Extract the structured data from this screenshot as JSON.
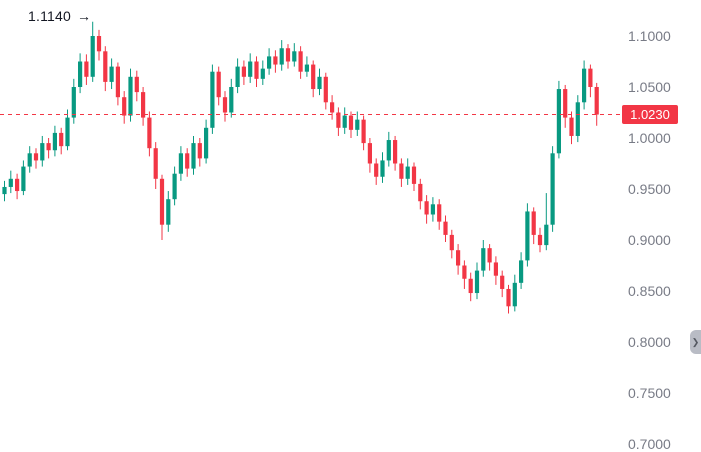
{
  "icons": {
    "arrow_right": "→",
    "chevron_right": "❯"
  },
  "chart_data": {
    "type": "candlestick",
    "title": "",
    "xlabel": "",
    "ylabel": "",
    "grid": false,
    "legend": false,
    "y_axis": {
      "side": "right",
      "ticks": [
        "1.1000",
        "1.0500",
        "1.0000",
        "0.9500",
        "0.9000",
        "0.8500",
        "0.8000",
        "0.7500",
        "0.7000"
      ],
      "range": [
        0.7,
        1.1
      ]
    },
    "colors": {
      "up": "#089981",
      "down": "#f23645"
    },
    "price_line": {
      "value": 1.023,
      "label": "1.0230",
      "color": "#f23645",
      "style": "dashed"
    },
    "annotation": {
      "text": "1.1140",
      "value": 1.114
    },
    "candles": [
      [
        0.945,
        0.958,
        0.938,
        0.952
      ],
      [
        0.952,
        0.968,
        0.946,
        0.96
      ],
      [
        0.96,
        0.965,
        0.94,
        0.948
      ],
      [
        0.948,
        0.978,
        0.944,
        0.972
      ],
      [
        0.972,
        0.992,
        0.966,
        0.985
      ],
      [
        0.985,
        0.99,
        0.97,
        0.978
      ],
      [
        0.978,
        1.002,
        0.972,
        0.995
      ],
      [
        0.995,
        1.0,
        0.98,
        0.988
      ],
      [
        0.988,
        1.012,
        0.982,
        1.005
      ],
      [
        1.005,
        1.01,
        0.984,
        0.992
      ],
      [
        0.992,
        1.028,
        0.988,
        1.02
      ],
      [
        1.02,
        1.058,
        1.014,
        1.05
      ],
      [
        1.05,
        1.083,
        1.044,
        1.075
      ],
      [
        1.075,
        1.082,
        1.052,
        1.06
      ],
      [
        1.06,
        1.114,
        1.055,
        1.1
      ],
      [
        1.1,
        1.106,
        1.076,
        1.085
      ],
      [
        1.085,
        1.09,
        1.046,
        1.055
      ],
      [
        1.055,
        1.078,
        1.048,
        1.07
      ],
      [
        1.07,
        1.074,
        1.032,
        1.04
      ],
      [
        1.04,
        1.046,
        1.014,
        1.022
      ],
      [
        1.022,
        1.068,
        1.016,
        1.06
      ],
      [
        1.06,
        1.066,
        1.036,
        1.045
      ],
      [
        1.045,
        1.05,
        1.012,
        1.02
      ],
      [
        1.02,
        1.026,
        0.982,
        0.99
      ],
      [
        0.99,
        0.996,
        0.95,
        0.96
      ],
      [
        0.96,
        0.964,
        0.9,
        0.915
      ],
      [
        0.915,
        0.948,
        0.908,
        0.94
      ],
      [
        0.94,
        0.972,
        0.934,
        0.965
      ],
      [
        0.965,
        0.992,
        0.958,
        0.985
      ],
      [
        0.985,
        0.99,
        0.962,
        0.97
      ],
      [
        0.97,
        1.002,
        0.964,
        0.995
      ],
      [
        0.995,
        1.0,
        0.972,
        0.98
      ],
      [
        0.98,
        1.018,
        0.975,
        1.01
      ],
      [
        1.01,
        1.072,
        1.004,
        1.065
      ],
      [
        1.065,
        1.07,
        1.032,
        1.04
      ],
      [
        1.04,
        1.046,
        1.016,
        1.025
      ],
      [
        1.025,
        1.058,
        1.02,
        1.05
      ],
      [
        1.05,
        1.078,
        1.044,
        1.07
      ],
      [
        1.07,
        1.076,
        1.052,
        1.06
      ],
      [
        1.06,
        1.083,
        1.054,
        1.075
      ],
      [
        1.075,
        1.08,
        1.05,
        1.058
      ],
      [
        1.058,
        1.076,
        1.052,
        1.068
      ],
      [
        1.068,
        1.088,
        1.062,
        1.08
      ],
      [
        1.08,
        1.086,
        1.064,
        1.072
      ],
      [
        1.072,
        1.096,
        1.066,
        1.088
      ],
      [
        1.088,
        1.092,
        1.068,
        1.075
      ],
      [
        1.075,
        1.093,
        1.07,
        1.085
      ],
      [
        1.085,
        1.09,
        1.058,
        1.065
      ],
      [
        1.065,
        1.08,
        1.06,
        1.072
      ],
      [
        1.072,
        1.076,
        1.04,
        1.048
      ],
      [
        1.048,
        1.068,
        1.042,
        1.06
      ],
      [
        1.06,
        1.064,
        1.028,
        1.035
      ],
      [
        1.035,
        1.042,
        1.018,
        1.025
      ],
      [
        1.025,
        1.03,
        1.002,
        1.01
      ],
      [
        1.01,
        1.03,
        1.004,
        1.022
      ],
      [
        1.022,
        1.026,
        1.0,
        1.008
      ],
      [
        1.008,
        1.026,
        1.002,
        1.018
      ],
      [
        1.018,
        1.022,
        0.988,
        0.995
      ],
      [
        0.995,
        1.0,
        0.966,
        0.975
      ],
      [
        0.975,
        0.98,
        0.954,
        0.962
      ],
      [
        0.962,
        0.986,
        0.956,
        0.978
      ],
      [
        0.978,
        1.006,
        0.972,
        0.998
      ],
      [
        0.998,
        1.002,
        0.968,
        0.975
      ],
      [
        0.975,
        0.98,
        0.952,
        0.96
      ],
      [
        0.96,
        0.98,
        0.954,
        0.972
      ],
      [
        0.972,
        0.976,
        0.948,
        0.955
      ],
      [
        0.955,
        0.96,
        0.93,
        0.938
      ],
      [
        0.938,
        0.944,
        0.916,
        0.925
      ],
      [
        0.925,
        0.942,
        0.918,
        0.935
      ],
      [
        0.935,
        0.94,
        0.91,
        0.918
      ],
      [
        0.918,
        0.924,
        0.898,
        0.905
      ],
      [
        0.905,
        0.91,
        0.882,
        0.89
      ],
      [
        0.89,
        0.896,
        0.866,
        0.875
      ],
      [
        0.875,
        0.88,
        0.852,
        0.862
      ],
      [
        0.862,
        0.868,
        0.84,
        0.848
      ],
      [
        0.848,
        0.878,
        0.842,
        0.87
      ],
      [
        0.87,
        0.9,
        0.864,
        0.892
      ],
      [
        0.892,
        0.896,
        0.87,
        0.878
      ],
      [
        0.878,
        0.884,
        0.856,
        0.865
      ],
      [
        0.865,
        0.87,
        0.844,
        0.852
      ],
      [
        0.852,
        0.856,
        0.828,
        0.835
      ],
      [
        0.835,
        0.866,
        0.83,
        0.858
      ],
      [
        0.858,
        0.888,
        0.852,
        0.88
      ],
      [
        0.88,
        0.936,
        0.874,
        0.928
      ],
      [
        0.928,
        0.932,
        0.896,
        0.905
      ],
      [
        0.905,
        0.912,
        0.888,
        0.895
      ],
      [
        0.895,
        0.946,
        0.89,
        0.915
      ],
      [
        0.915,
        0.992,
        0.908,
        0.985
      ],
      [
        0.985,
        1.056,
        0.98,
        1.048
      ],
      [
        1.048,
        1.052,
        1.01,
        1.02
      ],
      [
        1.02,
        1.026,
        0.994,
        1.002
      ],
      [
        1.002,
        1.042,
        0.996,
        1.035
      ],
      [
        1.035,
        1.076,
        1.028,
        1.068
      ],
      [
        1.068,
        1.072,
        1.04,
        1.05
      ],
      [
        1.05,
        1.054,
        1.012,
        1.023
      ]
    ]
  }
}
